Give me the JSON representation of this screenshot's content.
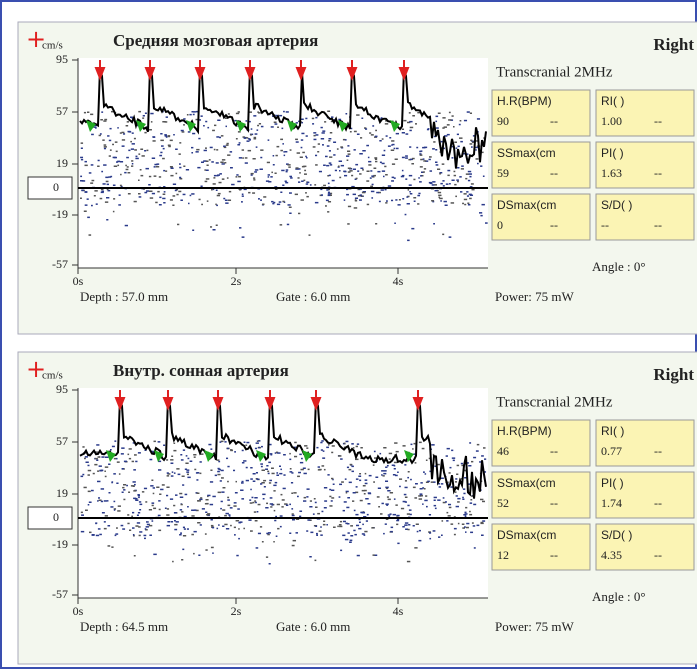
{
  "panels": [
    {
      "unit": "cm/s",
      "title": "Средняя мозговая артерия",
      "side": "Right",
      "probe": "Transcranial 2MHz",
      "baseline": "0",
      "y_labels": [
        "95",
        "57",
        "19",
        "-19",
        "-57"
      ],
      "x_labels": [
        "0s",
        "2s",
        "4s"
      ],
      "depth": "Depth : 57.0 mm",
      "gate": "Gate : 6.0 mm",
      "power": "Power:  75 mW",
      "angle": "Angle :  0°",
      "measures": [
        {
          "label": "H.R(BPM)",
          "value": "90",
          "trend": "--"
        },
        {
          "label": "RI( )",
          "value": "1.00",
          "trend": "--"
        },
        {
          "label": "SSmax(cm",
          "value": "59",
          "trend": "--"
        },
        {
          "label": "PI( )",
          "value": "1.63",
          "trend": "--"
        },
        {
          "label": "DSmax(cm",
          "value": "0",
          "trend": "--"
        },
        {
          "label": "S/D( )",
          "value": "--",
          "trend": "--"
        }
      ]
    },
    {
      "unit": "cm/s",
      "title": "Внутр. сонная артерия",
      "side": "Right",
      "probe": "Transcranial 2MHz",
      "baseline": "0",
      "y_labels": [
        "95",
        "57",
        "19",
        "-19",
        "-57"
      ],
      "x_labels": [
        "0s",
        "2s",
        "4s"
      ],
      "depth": "Depth : 64.5 mm",
      "gate": "Gate : 6.0 mm",
      "power": "Power:  75 mW",
      "angle": "Angle :  0°",
      "measures": [
        {
          "label": "H.R(BPM)",
          "value": "46",
          "trend": "--"
        },
        {
          "label": "RI( )",
          "value": "0.77",
          "trend": "--"
        },
        {
          "label": "SSmax(cm",
          "value": "52",
          "trend": "--"
        },
        {
          "label": "PI( )",
          "value": "1.74",
          "trend": "--"
        },
        {
          "label": "DSmax(cm",
          "value": "12",
          "trend": "--"
        },
        {
          "label": "S/D( )",
          "value": "4.35",
          "trend": "--"
        }
      ]
    }
  ]
}
